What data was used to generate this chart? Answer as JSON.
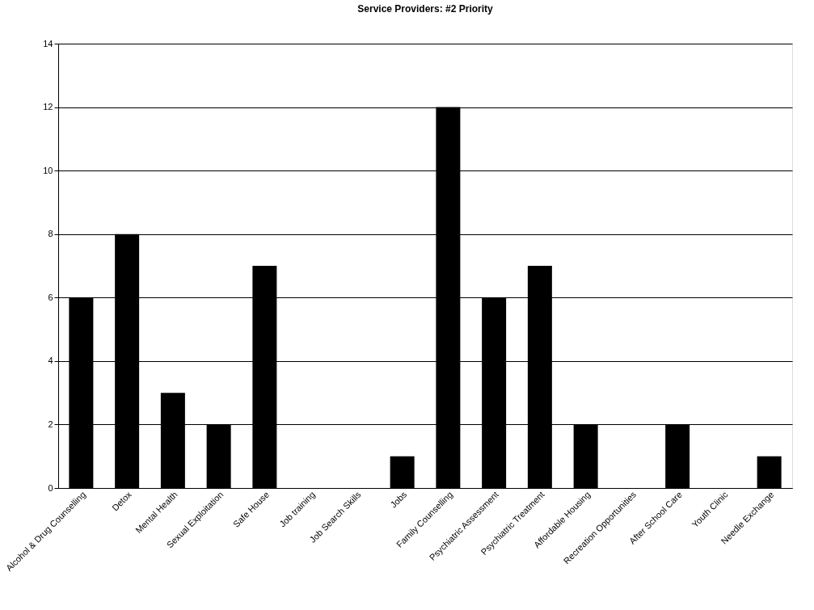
{
  "chart_data": {
    "type": "bar",
    "title": "Service Providers: #2 Priority",
    "categories": [
      "Alcohol & Drug Counselling",
      "Detox",
      "Mental Health",
      "Sexual Exploitation",
      "Safe House",
      "Job training",
      "Job Search Skills",
      "Jobs",
      "Family Counselling",
      "Psychiatric Assessment",
      "Psychiatric Treatment",
      "Affordable Housing",
      "Recreation Opportunities",
      "After School Care",
      "Youth Clinic",
      "Needle Exchange"
    ],
    "values": [
      6,
      8,
      3,
      2,
      7,
      0,
      0,
      1,
      12,
      6,
      7,
      2,
      0,
      2,
      0,
      1
    ],
    "color": "#000000",
    "ylim": [
      0,
      14
    ],
    "yticks": [
      0,
      2,
      4,
      6,
      8,
      10,
      12,
      14
    ],
    "grid": "y"
  }
}
